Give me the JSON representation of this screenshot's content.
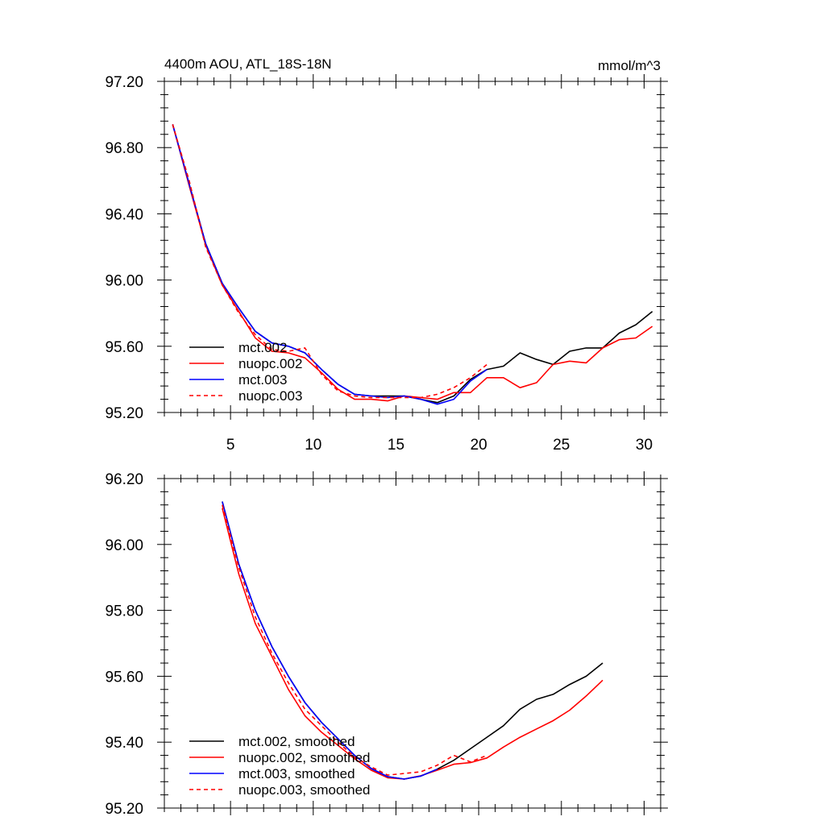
{
  "chart_data": [
    {
      "type": "line",
      "title": "4400m AOU, ATL_18S-18N",
      "units_label": "mmol/m^3",
      "xlabel": "",
      "ylabel": "",
      "xlim": [
        1,
        31
      ],
      "ylim": [
        95.2,
        97.2
      ],
      "x_ticks": [
        5,
        10,
        15,
        20,
        25,
        30
      ],
      "x_tick_labels": [
        "5",
        "10",
        "15",
        "20",
        "25",
        "30"
      ],
      "y_ticks": [
        95.2,
        95.6,
        96.0,
        96.4,
        96.8,
        97.2
      ],
      "y_tick_labels": [
        "95.20",
        "95.60",
        "96.00",
        "96.40",
        "96.80",
        "97.20"
      ],
      "legend_position": "bottom-left",
      "series": [
        {
          "name": "mct.002",
          "color": "#000000",
          "dashed": false,
          "x": [
            1.5,
            2.5,
            3.5,
            4.5,
            5.5,
            6.5,
            7.5,
            8.5,
            9.5,
            10.5,
            11.5,
            12.5,
            13.5,
            14.5,
            15.5,
            16.5,
            17.5,
            18.5,
            19.5,
            20.5,
            21.5,
            22.5,
            23.5,
            24.5,
            25.5,
            26.5,
            27.5,
            28.5,
            29.5,
            30.5
          ],
          "y": [
            96.94,
            96.58,
            96.22,
            95.98,
            95.83,
            95.69,
            95.62,
            95.6,
            95.56,
            95.46,
            95.37,
            95.31,
            95.3,
            95.3,
            95.3,
            95.28,
            95.26,
            95.3,
            95.4,
            95.46,
            95.48,
            95.56,
            95.52,
            95.49,
            95.57,
            95.59,
            95.59,
            95.68,
            95.73,
            95.81
          ]
        },
        {
          "name": "nuopc.002",
          "color": "#ff0000",
          "dashed": false,
          "x": [
            1.5,
            2.5,
            3.5,
            4.5,
            5.5,
            6.5,
            7.5,
            8.5,
            9.5,
            10.5,
            11.5,
            12.5,
            13.5,
            14.5,
            15.5,
            16.5,
            17.5,
            18.5,
            19.5,
            20.5,
            21.5,
            22.5,
            23.5,
            24.5,
            25.5,
            26.5,
            27.5,
            28.5,
            29.5,
            30.5
          ],
          "y": [
            96.94,
            96.57,
            96.21,
            95.97,
            95.81,
            95.65,
            95.57,
            95.56,
            95.53,
            95.44,
            95.34,
            95.28,
            95.28,
            95.27,
            95.3,
            95.29,
            95.28,
            95.32,
            95.32,
            95.41,
            95.41,
            95.35,
            95.38,
            95.49,
            95.51,
            95.5,
            95.59,
            95.64,
            95.65,
            95.72
          ]
        },
        {
          "name": "mct.003",
          "color": "#0000ff",
          "dashed": false,
          "x": [
            1.5,
            2.5,
            3.5,
            4.5,
            5.5,
            6.5,
            7.5,
            8.5,
            9.5,
            10.5,
            11.5,
            12.5,
            13.5,
            14.5,
            15.5,
            16.5,
            17.5,
            18.5,
            19.5,
            20.5
          ],
          "y": [
            96.94,
            96.58,
            96.22,
            95.98,
            95.83,
            95.69,
            95.62,
            95.6,
            95.56,
            95.46,
            95.37,
            95.31,
            95.3,
            95.29,
            95.3,
            95.28,
            95.25,
            95.28,
            95.39,
            95.46
          ]
        },
        {
          "name": "nuopc.003",
          "color": "#ff0000",
          "dashed": true,
          "x": [
            1.5,
            2.5,
            3.5,
            4.5,
            5.5,
            6.5,
            7.5,
            8.5,
            9.5,
            10.5,
            11.5,
            12.5,
            13.5,
            14.5,
            15.5,
            16.5,
            17.5,
            18.5,
            19.5,
            20.5
          ],
          "y": [
            96.94,
            96.6,
            96.2,
            95.97,
            95.8,
            95.67,
            95.58,
            95.57,
            95.59,
            95.43,
            95.33,
            95.3,
            95.29,
            95.29,
            95.29,
            95.29,
            95.31,
            95.35,
            95.41,
            95.49
          ]
        }
      ]
    },
    {
      "type": "line",
      "title": "",
      "xlabel": "",
      "ylabel": "",
      "xlim": [
        1,
        31
      ],
      "ylim": [
        95.2,
        96.2
      ],
      "x_ticks": [
        5,
        10,
        15,
        20,
        25,
        30
      ],
      "x_tick_labels": [],
      "y_ticks": [
        95.2,
        95.4,
        95.6,
        95.8,
        96.0,
        96.2
      ],
      "y_tick_labels": [
        "95.20",
        "95.40",
        "95.60",
        "95.80",
        "96.00",
        "96.20"
      ],
      "legend_position": "bottom-left",
      "series": [
        {
          "name": "mct.002, smoothed",
          "color": "#000000",
          "dashed": false,
          "x": [
            4.5,
            5.5,
            6.5,
            7.5,
            8.5,
            9.5,
            10.5,
            11.5,
            12.5,
            13.5,
            14.5,
            15.5,
            16.5,
            17.5,
            18.5,
            19.5,
            20.5,
            21.5,
            22.5,
            23.5,
            24.5,
            25.5,
            26.5,
            27.5
          ],
          "y": [
            96.13,
            95.94,
            95.8,
            95.69,
            95.6,
            95.52,
            95.46,
            95.41,
            95.36,
            95.32,
            95.295,
            95.288,
            95.297,
            95.318,
            95.345,
            95.38,
            95.415,
            95.45,
            95.5,
            95.53,
            95.545,
            95.575,
            95.6,
            95.64
          ]
        },
        {
          "name": "nuopc.002, smoothed",
          "color": "#ff0000",
          "dashed": false,
          "x": [
            4.5,
            5.5,
            6.5,
            7.5,
            8.5,
            9.5,
            10.5,
            11.5,
            12.5,
            13.5,
            14.5,
            15.5,
            16.5,
            17.5,
            18.5,
            19.5,
            20.5,
            21.5,
            22.5,
            23.5,
            24.5,
            25.5,
            26.5,
            27.5
          ],
          "y": [
            96.11,
            95.91,
            95.76,
            95.66,
            95.56,
            95.48,
            95.43,
            95.39,
            95.35,
            95.315,
            95.292,
            95.288,
            95.298,
            95.315,
            95.333,
            95.338,
            95.352,
            95.385,
            95.415,
            95.44,
            95.465,
            95.497,
            95.54,
            95.588
          ]
        },
        {
          "name": "mct.003, smoothed",
          "color": "#0000ff",
          "dashed": false,
          "x": [
            4.5,
            5.5,
            6.5,
            7.5,
            8.5,
            9.5,
            10.5,
            11.5,
            12.5,
            13.5,
            14.5,
            15.5,
            16.5,
            17.5
          ],
          "y": [
            96.13,
            95.94,
            95.8,
            95.69,
            95.6,
            95.52,
            95.46,
            95.41,
            95.36,
            95.32,
            95.295,
            95.288,
            95.297,
            95.318
          ]
        },
        {
          "name": "nuopc.003, smoothed",
          "color": "#ff0000",
          "dashed": true,
          "x": [
            4.5,
            5.5,
            6.5,
            7.5,
            8.5,
            9.5,
            10.5,
            11.5,
            12.5,
            13.5,
            14.5,
            15.5,
            16.5,
            17.5,
            18.5,
            19.5,
            20.5
          ],
          "y": [
            96.12,
            95.93,
            95.78,
            95.67,
            95.58,
            95.5,
            95.45,
            95.4,
            95.355,
            95.325,
            95.3,
            95.305,
            95.31,
            95.33,
            95.36,
            95.34,
            95.36
          ]
        }
      ]
    }
  ]
}
